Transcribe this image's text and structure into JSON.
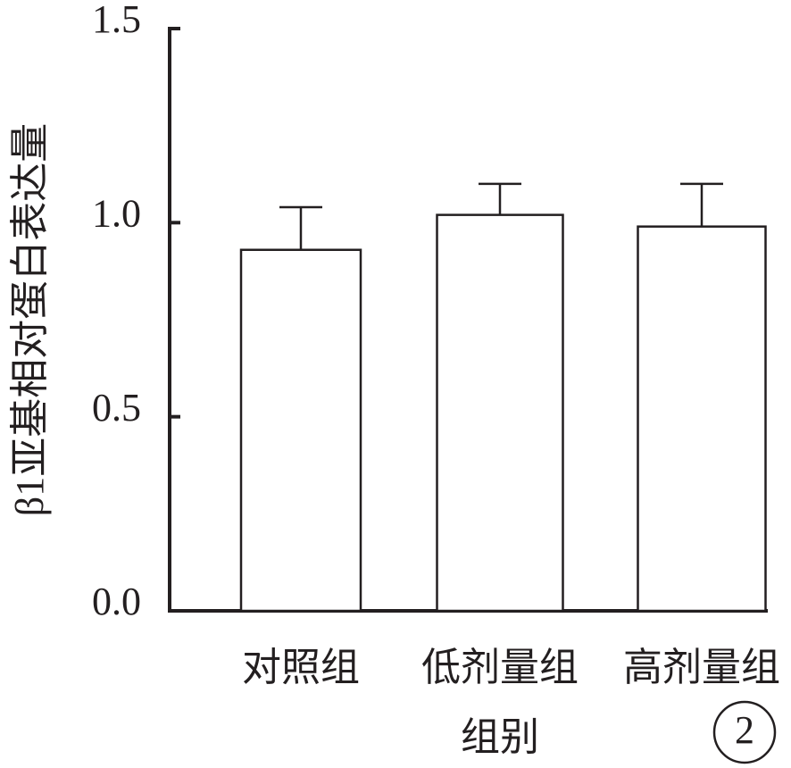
{
  "chart_data": {
    "type": "bar",
    "categories": [
      "对照组",
      "低剂量组",
      "高剂量组"
    ],
    "values": [
      0.93,
      1.02,
      0.99
    ],
    "errors": [
      0.11,
      0.08,
      0.11
    ],
    "color": "#ffffff",
    "ylim": [
      0,
      1.5
    ],
    "yticks": [
      {
        "value": 0,
        "label": "0.0"
      },
      0.5,
      {
        "value": 1,
        "label": "1.0"
      },
      1.5
    ],
    "x_label": "组别",
    "y_label": "β1亚基相对蛋白表达量",
    "annotation": "2"
  }
}
